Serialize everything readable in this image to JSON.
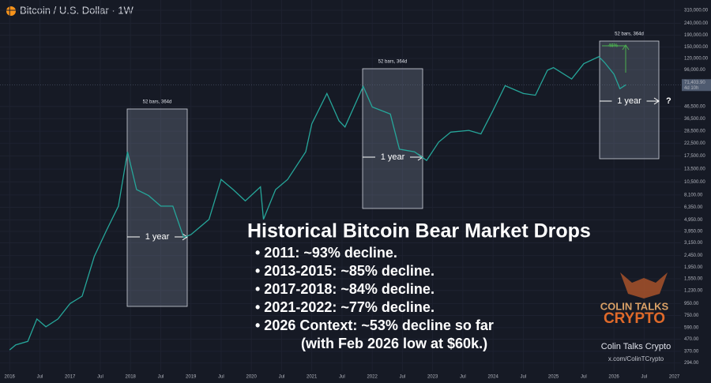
{
  "chart_data": {
    "type": "line",
    "header": "Bitcoin / U.S. Dollar · 1W",
    "log_scale": true,
    "color": "#26a69a",
    "x": [
      2016.0,
      2016.1,
      2016.3,
      2016.45,
      2016.6,
      2016.8,
      2017.0,
      2017.2,
      2017.4,
      2017.6,
      2017.8,
      2017.95,
      2018.1,
      2018.3,
      2018.5,
      2018.7,
      2018.88,
      2019.0,
      2019.3,
      2019.5,
      2019.7,
      2019.9,
      2020.15,
      2020.2,
      2020.4,
      2020.6,
      2020.9,
      2021.0,
      2021.25,
      2021.45,
      2021.55,
      2021.85,
      2022.0,
      2022.3,
      2022.45,
      2022.7,
      2022.9,
      2023.1,
      2023.3,
      2023.6,
      2023.8,
      2024.0,
      2024.2,
      2024.5,
      2024.7,
      2024.9,
      2025.0,
      2025.3,
      2025.5,
      2025.75,
      2025.85,
      2026.0,
      2026.1,
      2026.2
    ],
    "values": [
      380,
      420,
      450,
      700,
      600,
      700,
      950,
      1100,
      2400,
      4000,
      6500,
      19000,
      9000,
      8000,
      6500,
      6500,
      3500,
      3700,
      5000,
      11000,
      9000,
      7200,
      9500,
      5000,
      9000,
      11000,
      19000,
      33000,
      60000,
      35000,
      31000,
      69000,
      46000,
      40000,
      20000,
      19000,
      16000,
      23000,
      28000,
      29000,
      27000,
      43000,
      70000,
      60000,
      58000,
      95000,
      100000,
      80000,
      108000,
      124000,
      110000,
      88000,
      66000,
      71400
    ],
    "xlim": [
      2015.84,
      2027.11
    ],
    "xticks": [
      2016,
      {
        "value": 2016.5,
        "label": "Jul"
      },
      2017,
      {
        "value": 2017.5,
        "label": "Jul"
      },
      2018,
      {
        "value": 2018.5,
        "label": "Jul"
      },
      2019,
      {
        "value": 2019.5,
        "label": "Jul"
      },
      2020,
      {
        "value": 2020.5,
        "label": "Jul"
      },
      2021,
      {
        "value": 2021.5,
        "label": "Jul"
      },
      2022,
      {
        "value": 2022.5,
        "label": "Jul"
      },
      2023,
      {
        "value": 2023.5,
        "label": "Jul"
      },
      2024,
      {
        "value": 2024.5,
        "label": "Jul"
      },
      2025,
      {
        "value": 2025.5,
        "label": "Jul"
      },
      2026,
      {
        "value": 2026.5,
        "label": "Jul"
      },
      2027
    ],
    "ylim": [
      250,
      380000
    ],
    "yticks": [
      {
        "value": 310000,
        "label": "310,000.00"
      },
      {
        "value": 240000,
        "label": "240,000.00"
      },
      {
        "value": 190000,
        "label": "190,000.00"
      },
      {
        "value": 150000,
        "label": "150,000.00"
      },
      {
        "value": 120000,
        "label": "120,000.00"
      },
      {
        "value": 96000,
        "label": "96,000.00"
      },
      {
        "value": 46500,
        "label": "46,500.00"
      },
      {
        "value": 36500,
        "label": "36,500.00"
      },
      {
        "value": 28500,
        "label": "28,500.00"
      },
      {
        "value": 22500,
        "label": "22,500.00"
      },
      {
        "value": 17500,
        "label": "17,500.00"
      },
      {
        "value": 13500,
        "label": "13,500.00"
      },
      {
        "value": 10500,
        "label": "10,500.00"
      },
      {
        "value": 8100,
        "label": "8,100.00"
      },
      {
        "value": 6350,
        "label": "6,350.00"
      },
      {
        "value": 4950,
        "label": "4,950.00"
      },
      {
        "value": 3950,
        "label": "3,950.00"
      },
      {
        "value": 3150,
        "label": "3,150.00"
      },
      {
        "value": 2450,
        "label": "2,450.00"
      },
      {
        "value": 1950,
        "label": "1,950.00"
      },
      {
        "value": 1550,
        "label": "1,550.00"
      },
      {
        "value": 1230,
        "label": "1,230.00"
      },
      {
        "value": 950,
        "label": "950.00"
      },
      {
        "value": 750,
        "label": "750.00"
      },
      {
        "value": 590,
        "label": "590.00"
      },
      {
        "value": 470,
        "label": "470.00"
      },
      {
        "value": 370,
        "label": "370.00"
      },
      {
        "value": 294,
        "label": "294.00"
      }
    ],
    "price_label": {
      "value": 71403.9,
      "label": "71,403.90"
    },
    "price_countdown": "4d 10h",
    "range_boxes": [
      {
        "label": "52 bars, 364d",
        "span": "1 year"
      },
      {
        "label": "52 bars, 364d",
        "span": "1 year"
      },
      {
        "label": "52 bars, 364d",
        "span": "1 year"
      }
    ],
    "rise_label": "46%",
    "question": "?"
  },
  "overlay": {
    "title": "Historical Bitcoin Bear Market Drops",
    "bullets": [
      "• 2011:  ~93% decline.",
      "• 2013-2015:  ~85% decline.",
      "• 2017-2018:  ~84% decline.",
      "• 2021-2022:  ~77% decline.",
      "• 2026 Context:  ~53% decline so far"
    ],
    "note": "(with Feb 2026 low at $60k.)"
  },
  "branding": {
    "logo_top": "COLIN TALKS",
    "logo_bottom": "CRYPTO",
    "name": "Colin Talks Crypto",
    "handle": "x.com/ColinTCrypto"
  }
}
